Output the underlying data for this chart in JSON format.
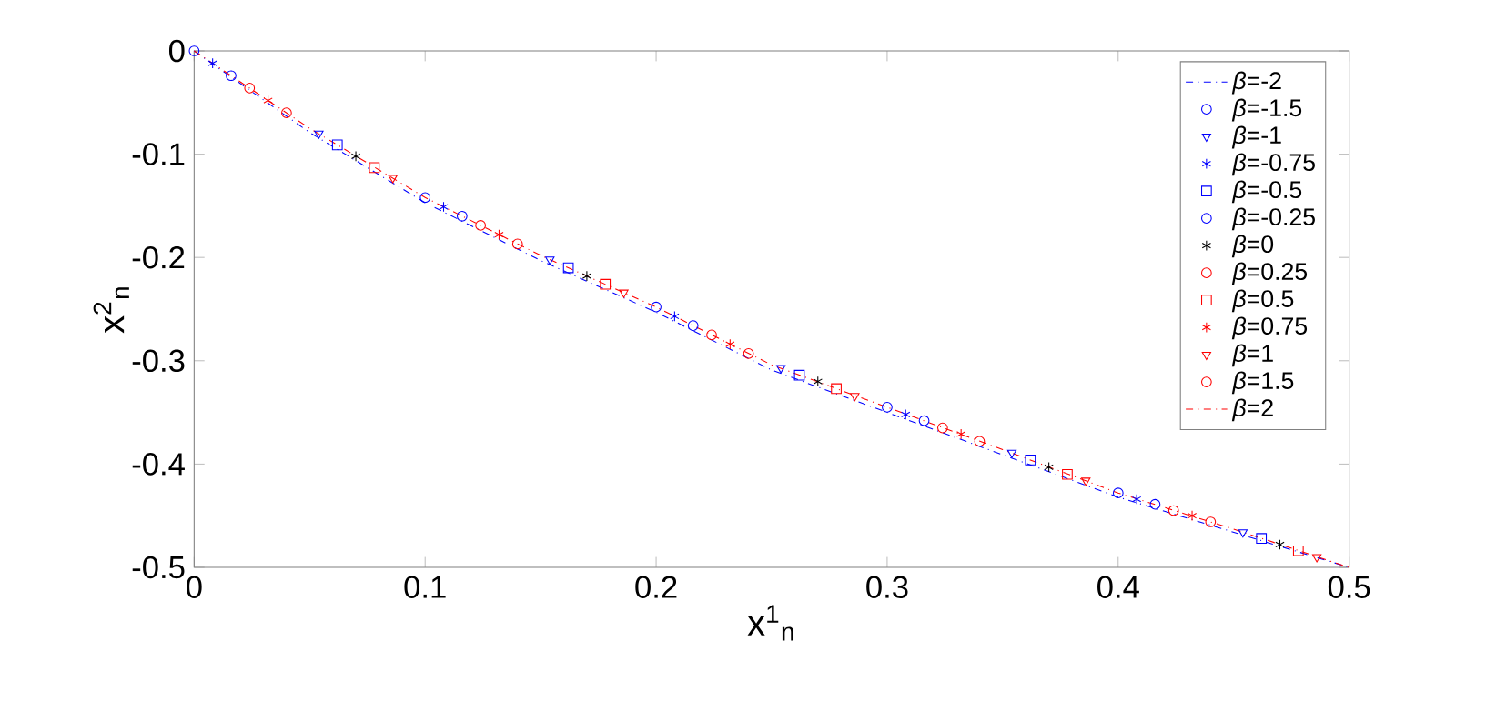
{
  "chart_data": {
    "type": "scatter",
    "xlabel": "x$^{1}$$_{n}$",
    "ylabel": "x$^{2}$$_{n}$",
    "x": [
      0,
      0.05,
      0.1,
      0.15,
      0.2,
      0.25,
      0.3,
      0.35,
      0.4,
      0.45,
      0.5
    ],
    "xlim": [
      0,
      0.5
    ],
    "xticks": [
      0,
      0.1,
      0.2,
      0.3,
      0.4,
      0.5
    ],
    "ylim": [
      -0.5,
      0
    ],
    "yticks": [
      -0.5,
      -0.4,
      -0.3,
      -0.2,
      -0.1,
      0
    ],
    "grid": false,
    "legend": "top right",
    "series": [
      {
        "name": "*β*=-2",
        "color": "#0000ff",
        "type": "line",
        "line_style": "dashed",
        "marker": "none",
        "values": [
          0,
          -0.079,
          -0.147,
          -0.203,
          -0.253,
          -0.309,
          -0.35,
          -0.391,
          -0.432,
          -0.466,
          -0.5
        ]
      },
      {
        "name": "*β*=-1.5",
        "color": "#0000ff",
        "marker": "circle",
        "x": [
          0,
          0.1,
          0.2,
          0.3,
          0.4
        ],
        "values": [
          0,
          -0.142,
          -0.248,
          -0.345,
          -0.428
        ]
      },
      {
        "name": "*β*=-1",
        "color": "#0000ff",
        "marker": "triangle",
        "x": [
          0.054,
          0.154,
          0.254,
          0.354,
          0.454
        ],
        "values": [
          -0.08,
          -0.202,
          -0.307,
          -0.389,
          -0.466
        ]
      },
      {
        "name": "*β*=-0.75",
        "color": "#0000ff",
        "marker": "cross",
        "x": [
          0.008,
          0.108,
          0.208,
          0.308,
          0.408
        ],
        "values": [
          -0.012,
          -0.151,
          -0.257,
          -0.352,
          -0.434
        ]
      },
      {
        "name": "*β*=-0.5",
        "color": "#0000ff",
        "marker": "square",
        "x": [
          0.062,
          0.162,
          0.262,
          0.362,
          0.462
        ],
        "values": [
          -0.091,
          -0.21,
          -0.314,
          -0.396,
          -0.472
        ]
      },
      {
        "name": "*β*=-0.25",
        "color": "#0000ff",
        "marker": "circle",
        "x": [
          0.016,
          0.116,
          0.216,
          0.316,
          0.416
        ],
        "values": [
          -0.024,
          -0.16,
          -0.266,
          -0.358,
          -0.439
        ]
      },
      {
        "name": "*β*=0",
        "color": "#000000",
        "marker": "cross",
        "x": [
          0.07,
          0.17,
          0.27,
          0.37,
          0.47
        ],
        "values": [
          -0.102,
          -0.218,
          -0.32,
          -0.403,
          -0.478
        ]
      },
      {
        "name": "*β*=0.25",
        "color": "#ff0000",
        "marker": "circle",
        "x": [
          0.024,
          0.124,
          0.224,
          0.324,
          0.424
        ],
        "values": [
          -0.036,
          -0.169,
          -0.275,
          -0.365,
          -0.445
        ]
      },
      {
        "name": "*β*=0.5",
        "color": "#ff0000",
        "marker": "square",
        "x": [
          0.078,
          0.178,
          0.278,
          0.378,
          0.478
        ],
        "values": [
          -0.113,
          -0.226,
          -0.327,
          -0.41,
          -0.484
        ]
      },
      {
        "name": "*β*=0.75",
        "color": "#ff0000",
        "marker": "cross",
        "x": [
          0.032,
          0.132,
          0.232,
          0.332,
          0.432
        ],
        "values": [
          -0.048,
          -0.178,
          -0.284,
          -0.371,
          -0.45
        ]
      },
      {
        "name": "*β*=1",
        "color": "#ff0000",
        "marker": "triangle",
        "x": [
          0.086,
          0.186,
          0.286,
          0.386,
          0.486
        ],
        "values": [
          -0.123,
          -0.234,
          -0.334,
          -0.416,
          -0.49
        ]
      },
      {
        "name": "*β*=1.5",
        "color": "#ff0000",
        "marker": "circle",
        "x": [
          0.04,
          0.14,
          0.24,
          0.34,
          0.44
        ],
        "values": [
          -0.06,
          -0.187,
          -0.293,
          -0.378,
          -0.456
        ]
      },
      {
        "name": "*β*=2",
        "color": "#ff0000",
        "type": "line",
        "line_style": "dashed",
        "marker": "none",
        "values": [
          0,
          -0.075,
          -0.142,
          -0.198,
          -0.248,
          -0.304,
          -0.345,
          -0.386,
          -0.428,
          -0.463,
          -0.5
        ]
      }
    ]
  }
}
